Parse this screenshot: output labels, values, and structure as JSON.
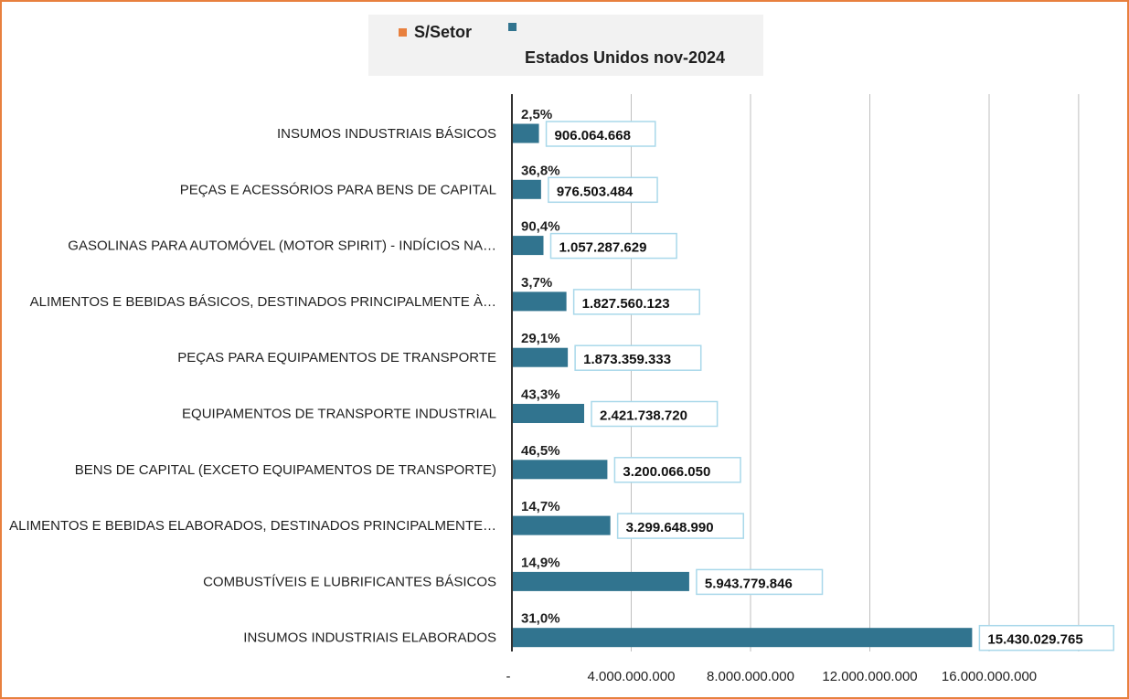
{
  "colors": {
    "frame": "#e8803e",
    "bar": "#31748f",
    "label_border": "#a9d8ea",
    "grid": "#bfbfbf",
    "axis": "#333333"
  },
  "legend": {
    "items": [
      {
        "label": "S/Setor",
        "color": "#e8803e"
      },
      {
        "label": "",
        "color": "#31748f"
      }
    ],
    "subtitle": "Estados Unidos nov-2024"
  },
  "chart_data": {
    "type": "bar",
    "orientation": "horizontal",
    "categories": [
      "INSUMOS INDUSTRIAIS BÁSICOS",
      "PEÇAS E ACESSÓRIOS PARA BENS DE CAPITAL",
      "GASOLINAS PARA AUTOMÓVEL (MOTOR SPIRIT) - INDÍCIOS NA…",
      "ALIMENTOS E BEBIDAS BÁSICOS, DESTINADOS PRINCIPALMENTE À…",
      "PEÇAS PARA EQUIPAMENTOS DE TRANSPORTE",
      "EQUIPAMENTOS DE TRANSPORTE INDUSTRIAL",
      "BENS DE CAPITAL (EXCETO EQUIPAMENTOS DE TRANSPORTE)",
      "ALIMENTOS E BEBIDAS ELABORADOS, DESTINADOS PRINCIPALMENTE…",
      "COMBUSTÍVEIS E LUBRIFICANTES BÁSICOS",
      "INSUMOS INDUSTRIAIS ELABORADOS"
    ],
    "values": [
      906064668,
      976503484,
      1057287629,
      1827560123,
      1873359333,
      2421738720,
      3200066050,
      3299648990,
      5943779846,
      15430029765
    ],
    "value_labels": [
      "906.064.668",
      "976.503.484",
      "1.057.287.629",
      "1.827.560.123",
      "1.873.359.333",
      "2.421.738.720",
      "3.200.066.050",
      "3.299.648.990",
      "5.943.779.846",
      "15.430.029.765"
    ],
    "share_labels": [
      "2,5%",
      "36,8%",
      "90,4%",
      "3,7%",
      "29,1%",
      "43,3%",
      "46,5%",
      "14,7%",
      "14,9%",
      "31,0%"
    ],
    "xlim": [
      0,
      19000000000
    ],
    "x_ticks": [
      0,
      4000000000,
      8000000000,
      12000000000,
      16000000000
    ],
    "x_tick_labels": [
      "-",
      "4.000.000.000",
      "8.000.000.000",
      "12.000.000.000",
      "16.000.000.000"
    ],
    "grid": true
  }
}
